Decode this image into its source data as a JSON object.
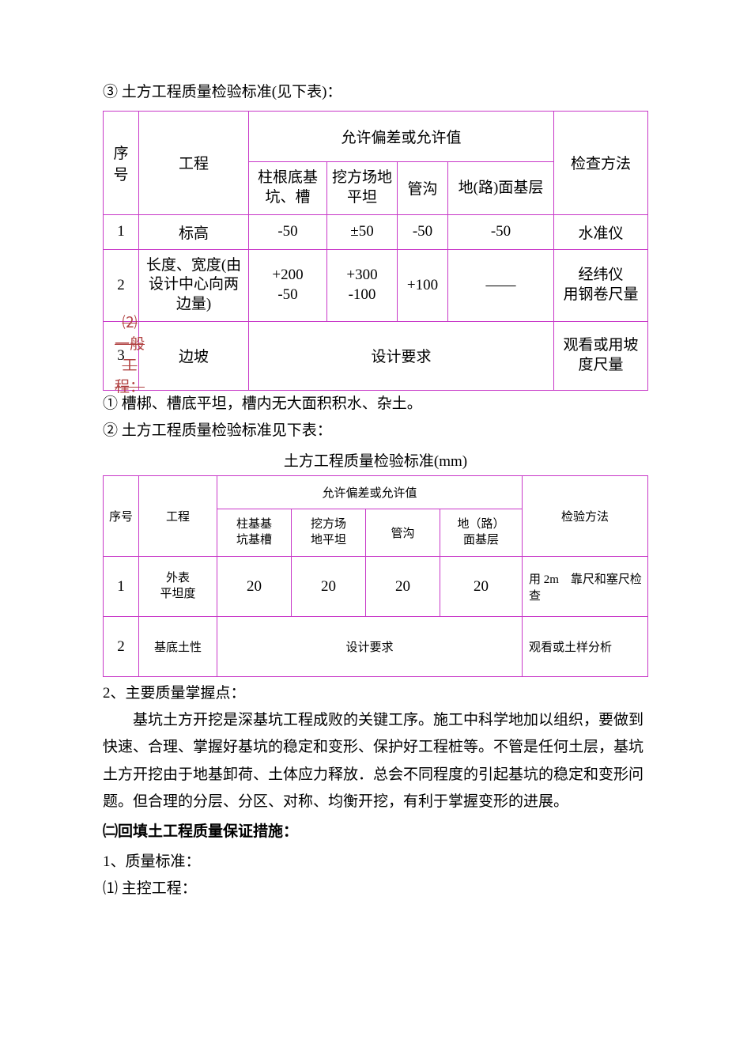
{
  "intro_line": "③ 土方工程质量检验标准(见下表)：",
  "table1": {
    "header_seq": "序号",
    "header_proj": "工程",
    "header_allow": "允许偏差或允许值",
    "header_method": "检查方法",
    "sub1": "柱根底基坑、槽",
    "sub2": "挖方场地平坦",
    "sub3": "管沟",
    "sub4": "地(路)面基层",
    "rows": [
      {
        "n": "1",
        "proj": "标高",
        "c1": "-50",
        "c2": "±50",
        "c3": "-50",
        "c4": "-50",
        "m": "水准仪"
      },
      {
        "n": "2",
        "proj": "长度、宽度(由设计中心向两边量)",
        "c1": "+200\n-50",
        "c2": "+300\n-100",
        "c3": "+100",
        "c4": "——",
        "m": "经纬仪\n用钢卷尺量"
      },
      {
        "n": "3",
        "proj": "边坡",
        "mid": "设计要求",
        "m": "观看或用坡度尺量"
      }
    ]
  },
  "general_heading": "⑵ 一般工程：",
  "general_1": "① 槽梆、槽底平坦，槽内无大面积积水、杂土。",
  "general_2": "② 土方工程质量检验标准见下表：",
  "caption2": "土方工程质量检验标准(mm)",
  "table2": {
    "header_seq": "序号",
    "header_proj": "工程",
    "header_allow": "允许偏差或允许值",
    "header_method": "检验方法",
    "sub1": "柱基基\n坑基槽",
    "sub2": "挖方场\n地平坦",
    "sub3": "管沟",
    "sub4": "地（路）\n面基层",
    "rows": [
      {
        "n": "1",
        "proj": "外表\n平坦度",
        "c1": "20",
        "c2": "20",
        "c3": "20",
        "c4": "20",
        "m": "用 2m　靠尺和塞尺检查"
      },
      {
        "n": "2",
        "proj": "基底土性",
        "mid": "设计要求",
        "m": "观看或土样分析"
      }
    ]
  },
  "point2_title": "2、主要质量掌握点：",
  "para": "基坑土方开挖是深基坑工程成败的关键工序。施工中科学地加以组织，要做到快速、合理、掌握好基坑的稳定和变形、保护好工程桩等。不管是任何土层，基坑土方开挖由于地基卸荷、土体应力释放．总会不同程度的引起基坑的稳定和变形问题。但合理的分层、分区、对称、均衡开挖，有利于掌握变形的进展。",
  "section2": "㈡回填土工程质量保证措施：",
  "s2_1": "1、质量标准：",
  "s2_2": "⑴ 主控工程："
}
